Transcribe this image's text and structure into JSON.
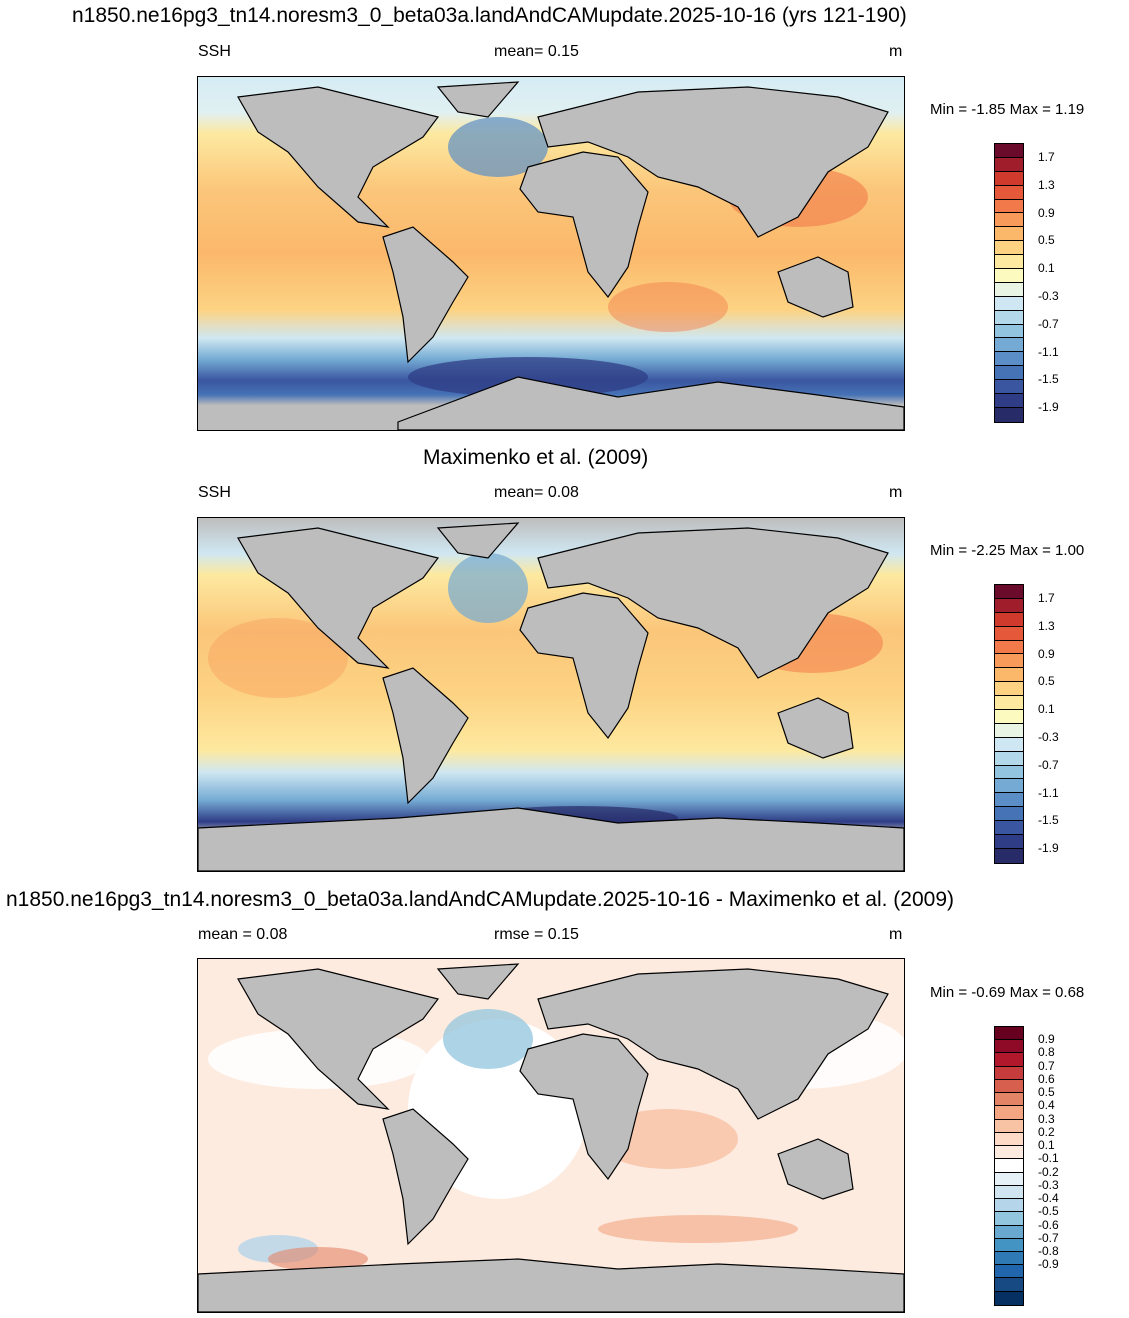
{
  "panel1": {
    "title": "n1850.ne16pg3_tn14.noresm3_0_beta03a.landAndCAMupdate.2025-10-16 (yrs 121-190)",
    "left": "SSH",
    "center": "mean=   0.15",
    "right": "m",
    "minmax": "Min =  -1.85 Max =   1.19",
    "colors": [
      "#6b0b2c",
      "#a01e2c",
      "#d03a2c",
      "#e5583a",
      "#f27a4a",
      "#f89a5a",
      "#fbb86b",
      "#fdd383",
      "#fde9a0",
      "#fdfabf",
      "#e9f4e4",
      "#cfe7f2",
      "#b2d8ea",
      "#92c3df",
      "#74aad3",
      "#5b8ec6",
      "#4672b6",
      "#3a56a0",
      "#2f3d86",
      "#272b68"
    ],
    "ticks": [
      "1.7",
      "1.3",
      "0.9",
      "0.5",
      "0.1",
      "-0.3",
      "-0.7",
      "-1.1",
      "-1.5",
      "-1.9"
    ]
  },
  "panel2": {
    "title": "Maximenko et al. (2009)",
    "left": "SSH",
    "center": "mean=   0.08",
    "right": "m",
    "minmax": "Min =  -2.25 Max =   1.00",
    "colors": [
      "#6b0b2c",
      "#a01e2c",
      "#d03a2c",
      "#e5583a",
      "#f27a4a",
      "#f89a5a",
      "#fbb86b",
      "#fdd383",
      "#fde9a0",
      "#fdfabf",
      "#e9f4e4",
      "#cfe7f2",
      "#b2d8ea",
      "#92c3df",
      "#74aad3",
      "#5b8ec6",
      "#4672b6",
      "#3a56a0",
      "#2f3d86",
      "#272b68"
    ],
    "ticks": [
      "1.7",
      "1.3",
      "0.9",
      "0.5",
      "0.1",
      "-0.3",
      "-0.7",
      "-1.1",
      "-1.5",
      "-1.9"
    ]
  },
  "panel3": {
    "title": "n1850.ne16pg3_tn14.noresm3_0_beta03a.landAndCAMupdate.2025-10-16 - Maximenko et al. (2009)",
    "left": "mean =   0.08",
    "center": "rmse =   0.15",
    "right": "m",
    "minmax": "Min =  -0.69 Max =   0.68",
    "colors": [
      "#67001f",
      "#8e0a26",
      "#b2182b",
      "#c63c3c",
      "#d6604d",
      "#e48466",
      "#f4a582",
      "#f8c2a4",
      "#fddbc7",
      "#fdebe0",
      "#ffffff",
      "#e6f0f7",
      "#d1e5f0",
      "#b5d5ea",
      "#92c5de",
      "#6aa9cf",
      "#4393c3",
      "#2f79b5",
      "#2166ac",
      "#174a83",
      "#053061"
    ],
    "ticks": [
      "0.9",
      "0.8",
      "0.7",
      "0.6",
      "0.5",
      "0.4",
      "0.3",
      "0.2",
      "0.1",
      "-0.1",
      "-0.2",
      "-0.3",
      "-0.4",
      "-0.5",
      "-0.6",
      "-0.7",
      "-0.8",
      "-0.9"
    ]
  }
}
